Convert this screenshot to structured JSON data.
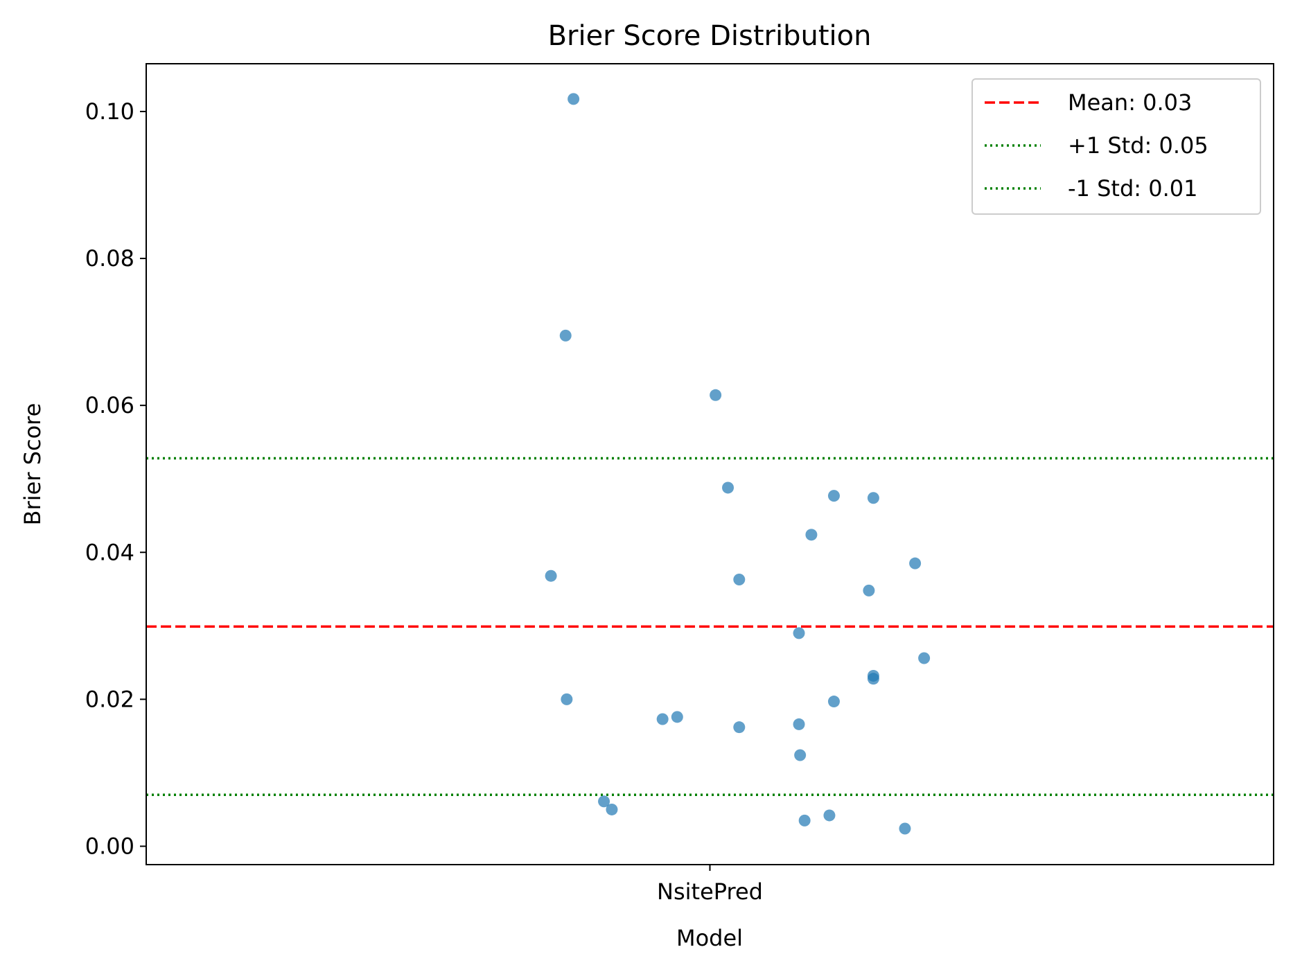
{
  "chart_data": {
    "type": "scatter",
    "title": "Brier Score Distribution",
    "xlabel": "Model",
    "ylabel": "Brier Score",
    "categories": [
      "NsitePred"
    ],
    "ylim": [
      -0.0025,
      0.1065
    ],
    "xlim": [
      -0.5,
      0.5
    ],
    "yticks": [
      0.0,
      0.02,
      0.04,
      0.06,
      0.08,
      0.1
    ],
    "ytick_labels": [
      "0.00",
      "0.02",
      "0.04",
      "0.06",
      "0.08",
      "0.10"
    ],
    "grid": false,
    "legend_position": "top-right",
    "point_color": "#1f77b4",
    "series": [
      {
        "category": "NsitePred",
        "points": [
          {
            "jitter": -0.121,
            "y": 0.1017
          },
          {
            "jitter": -0.128,
            "y": 0.0695
          },
          {
            "jitter": 0.005,
            "y": 0.0614
          },
          {
            "jitter": 0.016,
            "y": 0.0488
          },
          {
            "jitter": 0.11,
            "y": 0.0477
          },
          {
            "jitter": 0.145,
            "y": 0.0474
          },
          {
            "jitter": 0.09,
            "y": 0.0424
          },
          {
            "jitter": 0.182,
            "y": 0.0385
          },
          {
            "jitter": -0.141,
            "y": 0.0368
          },
          {
            "jitter": 0.026,
            "y": 0.0363
          },
          {
            "jitter": 0.141,
            "y": 0.0348
          },
          {
            "jitter": 0.079,
            "y": 0.029
          },
          {
            "jitter": 0.19,
            "y": 0.0256
          },
          {
            "jitter": 0.145,
            "y": 0.0232
          },
          {
            "jitter": 0.145,
            "y": 0.0228
          },
          {
            "jitter": -0.127,
            "y": 0.02
          },
          {
            "jitter": 0.11,
            "y": 0.0197
          },
          {
            "jitter": -0.042,
            "y": 0.0173
          },
          {
            "jitter": -0.029,
            "y": 0.0176
          },
          {
            "jitter": 0.026,
            "y": 0.0162
          },
          {
            "jitter": 0.079,
            "y": 0.0166
          },
          {
            "jitter": 0.08,
            "y": 0.0124
          },
          {
            "jitter": -0.094,
            "y": 0.0061
          },
          {
            "jitter": -0.087,
            "y": 0.005
          },
          {
            "jitter": 0.084,
            "y": 0.0035
          },
          {
            "jitter": 0.106,
            "y": 0.0042
          },
          {
            "jitter": 0.173,
            "y": 0.0024
          }
        ]
      }
    ],
    "reference_lines": [
      {
        "label": "Mean: 0.03",
        "y": 0.0299,
        "color": "#ff0000",
        "style": "dashed"
      },
      {
        "label": "+1 Std: 0.05",
        "y": 0.0528,
        "color": "#008000",
        "style": "dotted"
      },
      {
        "label": "-1 Std: 0.01",
        "y": 0.007,
        "color": "#008000",
        "style": "dotted"
      }
    ]
  }
}
